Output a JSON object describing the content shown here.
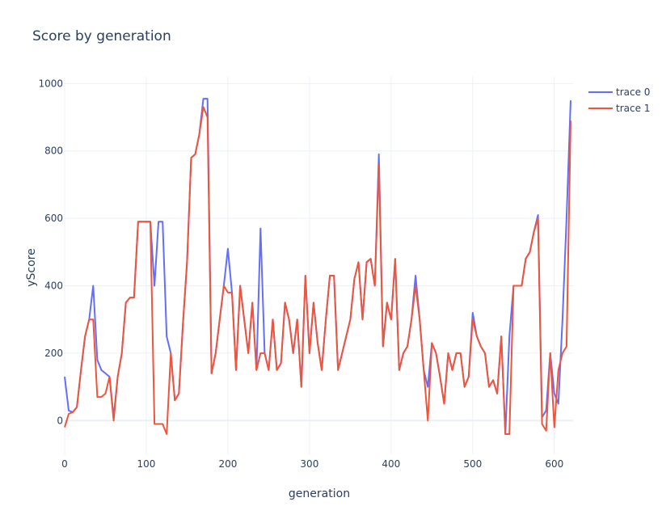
{
  "chart_data": {
    "type": "line",
    "title": "Score by generation",
    "xlabel": "generation",
    "ylabel": "yScore",
    "x": [
      0,
      5,
      10,
      15,
      20,
      25,
      30,
      35,
      40,
      45,
      50,
      55,
      60,
      65,
      70,
      75,
      80,
      85,
      90,
      95,
      100,
      105,
      110,
      115,
      120,
      125,
      130,
      135,
      140,
      145,
      150,
      155,
      160,
      165,
      170,
      175,
      180,
      185,
      190,
      195,
      200,
      205,
      210,
      215,
      220,
      225,
      230,
      235,
      240,
      245,
      250,
      255,
      260,
      265,
      270,
      275,
      280,
      285,
      290,
      295,
      300,
      305,
      310,
      315,
      320,
      325,
      330,
      335,
      340,
      345,
      350,
      355,
      360,
      365,
      370,
      375,
      380,
      385,
      390,
      395,
      400,
      405,
      410,
      415,
      420,
      425,
      430,
      435,
      440,
      445,
      450,
      455,
      460,
      465,
      470,
      475,
      480,
      485,
      490,
      495,
      500,
      505,
      510,
      515,
      520,
      525,
      530,
      535,
      540,
      545,
      550,
      555,
      560,
      565,
      570,
      575,
      580,
      585,
      590,
      595,
      600,
      605,
      610,
      615,
      620
    ],
    "series": [
      {
        "name": "trace 0",
        "color": "#636efa",
        "values": [
          130,
          30,
          25,
          40,
          150,
          250,
          300,
          400,
          180,
          150,
          140,
          130,
          10,
          130,
          200,
          350,
          365,
          365,
          590,
          590,
          590,
          590,
          400,
          590,
          590,
          250,
          200,
          60,
          80,
          290,
          470,
          780,
          790,
          850,
          955,
          955,
          140,
          200,
          300,
          400,
          510,
          380,
          150,
          400,
          300,
          200,
          350,
          150,
          570,
          200,
          150,
          300,
          150,
          170,
          350,
          300,
          200,
          300,
          100,
          430,
          200,
          350,
          230,
          150,
          300,
          430,
          430,
          150,
          200,
          250,
          300,
          420,
          470,
          300,
          470,
          480,
          400,
          790,
          220,
          350,
          300,
          480,
          150,
          200,
          220,
          300,
          430,
          300,
          150,
          100,
          230,
          200,
          130,
          50,
          200,
          150,
          200,
          200,
          100,
          130,
          320,
          250,
          220,
          200,
          100,
          120,
          80,
          250,
          -40,
          250,
          400,
          400,
          400,
          480,
          500,
          560,
          610,
          10,
          30,
          200,
          80,
          50,
          300,
          600,
          950
        ]
      },
      {
        "name": "trace 1",
        "color": "#ef553b",
        "values": [
          -20,
          20,
          25,
          40,
          150,
          250,
          300,
          300,
          70,
          70,
          80,
          130,
          0,
          130,
          200,
          350,
          365,
          365,
          590,
          590,
          590,
          590,
          -10,
          -10,
          -10,
          -40,
          200,
          60,
          80,
          290,
          470,
          780,
          790,
          850,
          930,
          900,
          140,
          200,
          300,
          400,
          380,
          380,
          150,
          400,
          300,
          200,
          350,
          150,
          200,
          200,
          150,
          300,
          150,
          170,
          350,
          300,
          200,
          300,
          100,
          430,
          200,
          350,
          230,
          150,
          300,
          430,
          430,
          150,
          200,
          250,
          300,
          420,
          470,
          300,
          470,
          480,
          400,
          760,
          220,
          350,
          300,
          480,
          150,
          200,
          220,
          300,
          400,
          300,
          150,
          0,
          230,
          200,
          130,
          50,
          200,
          150,
          200,
          200,
          100,
          130,
          300,
          250,
          220,
          200,
          100,
          120,
          80,
          250,
          -40,
          -40,
          400,
          400,
          400,
          480,
          500,
          560,
          600,
          -10,
          -30,
          200,
          -20,
          150,
          200,
          220,
          890
        ]
      }
    ],
    "xlim": [
      0,
      623
    ],
    "ylim": [
      -100,
      1020
    ],
    "xticks": [
      0,
      100,
      200,
      300,
      400,
      500,
      600
    ],
    "yticks": [
      0,
      200,
      400,
      600,
      800,
      1000
    ],
    "grid": true,
    "legend": "top-right"
  }
}
